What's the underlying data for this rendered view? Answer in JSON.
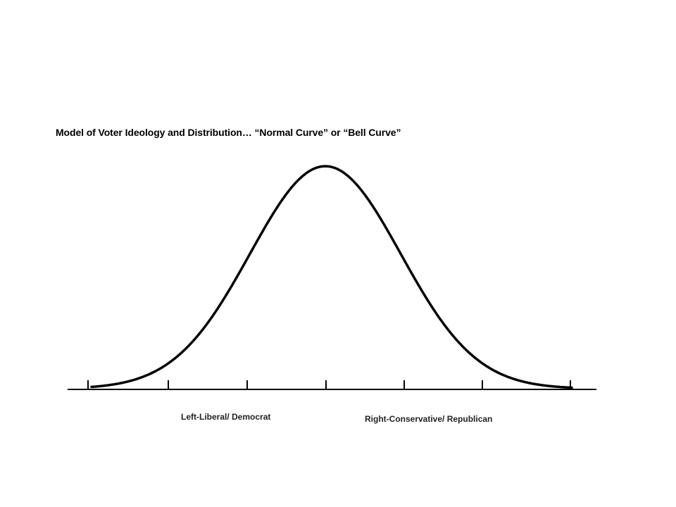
{
  "title": "Model of Voter Ideology and Distribution… “Normal Curve” or “Bell Curve”",
  "labels": {
    "left": "Left-Liberal/ Democrat",
    "right": "Right-Conservative/ Republican"
  },
  "chart_data": {
    "type": "line",
    "shape": "normal-distribution",
    "tick_count": 7,
    "colors": {
      "stroke": "#000000"
    }
  }
}
